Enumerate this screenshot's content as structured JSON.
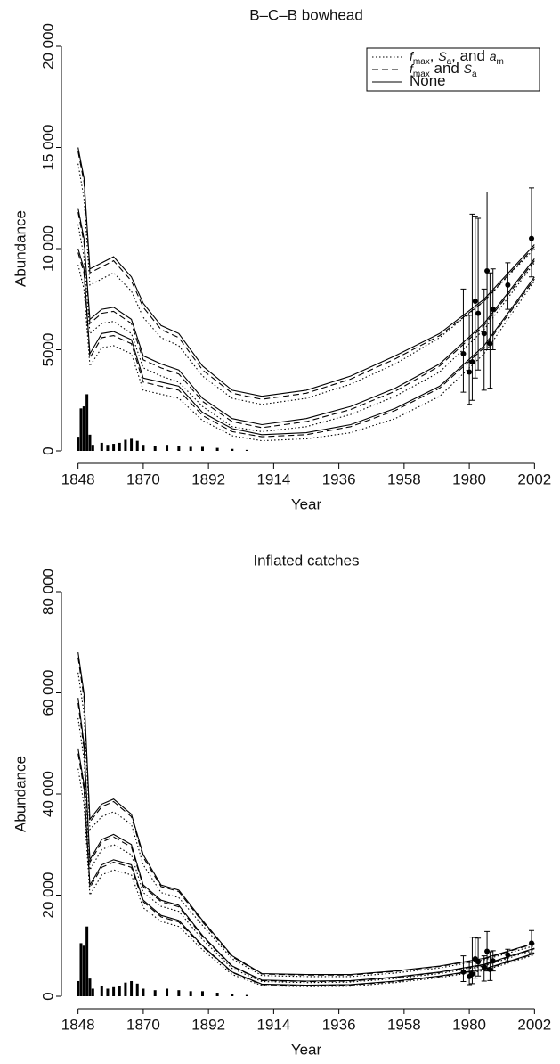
{
  "chart_data": [
    {
      "type": "line",
      "title": "B–C–B bowhead",
      "xlabel": "Year",
      "ylabel": "Abundance",
      "xlim": [
        1846,
        2004
      ],
      "ylim": [
        0,
        20000
      ],
      "xticks": [
        1848,
        1870,
        1892,
        1914,
        1936,
        1958,
        1980,
        2002
      ],
      "yticks": [
        0,
        5000,
        {
          "value": 10000,
          "label": "10 000"
        },
        {
          "value": 15000,
          "label": "15 000"
        },
        {
          "value": 20000,
          "label": "20 000"
        }
      ],
      "x": [
        1848,
        1850,
        1852,
        1856,
        1860,
        1866,
        1870,
        1876,
        1882,
        1890,
        1900,
        1910,
        1925,
        1940,
        1955,
        1970,
        1985,
        2002
      ],
      "series": [
        {
          "style": "solid",
          "values": [
            15000,
            13500,
            9000,
            9300,
            9600,
            8600,
            7300,
            6200,
            5800,
            4200,
            3000,
            2700,
            3000,
            3700,
            4700,
            5800,
            7500,
            10200
          ]
        },
        {
          "style": "solid",
          "values": [
            12000,
            10500,
            6500,
            7000,
            7100,
            6500,
            4700,
            4300,
            4000,
            2600,
            1600,
            1300,
            1600,
            2200,
            3100,
            4300,
            6300,
            9500
          ]
        },
        {
          "style": "solid",
          "values": [
            10000,
            9000,
            4800,
            5800,
            5900,
            5500,
            3600,
            3400,
            3200,
            1900,
            1100,
            800,
            900,
            1300,
            2100,
            3200,
            5200,
            8600
          ]
        },
        {
          "style": "dashed",
          "values": [
            14800,
            13300,
            8800,
            9100,
            9400,
            8400,
            7100,
            6000,
            5600,
            4000,
            2850,
            2550,
            2850,
            3550,
            4550,
            5700,
            7400,
            10100
          ]
        },
        {
          "style": "dashed",
          "values": [
            11800,
            10300,
            6300,
            6800,
            6900,
            6300,
            4500,
            4100,
            3800,
            2450,
            1450,
            1150,
            1450,
            2050,
            2950,
            4200,
            6200,
            9400
          ]
        },
        {
          "style": "dashed",
          "values": [
            9800,
            8800,
            4600,
            5600,
            5700,
            5300,
            3400,
            3200,
            3000,
            1750,
            950,
            700,
            800,
            1200,
            2000,
            3100,
            5100,
            8500
          ]
        },
        {
          "style": "dotted",
          "values": [
            14200,
            12500,
            8200,
            8500,
            8800,
            7900,
            6600,
            5600,
            5200,
            3700,
            2600,
            2300,
            2600,
            3300,
            4300,
            5600,
            7400,
            10000
          ]
        },
        {
          "style": "dotted",
          "values": [
            11200,
            9600,
            5800,
            6300,
            6400,
            5800,
            4100,
            3700,
            3400,
            2200,
            1200,
            950,
            1200,
            1800,
            2700,
            3900,
            6000,
            9300
          ]
        },
        {
          "style": "dotted",
          "values": [
            9200,
            8000,
            4200,
            5100,
            5200,
            4800,
            3000,
            2800,
            2600,
            1500,
            750,
            500,
            600,
            900,
            1600,
            2700,
            4800,
            8400
          ]
        }
      ],
      "catch_years": [
        1848,
        1849,
        1850,
        1851,
        1852,
        1853,
        1856,
        1858,
        1860,
        1862,
        1864,
        1866,
        1868,
        1870,
        1874,
        1878,
        1882,
        1886,
        1890,
        1895,
        1900,
        1905
      ],
      "catches": [
        700,
        2100,
        2200,
        2800,
        800,
        300,
        400,
        300,
        350,
        400,
        550,
        600,
        500,
        300,
        250,
        300,
        250,
        200,
        200,
        150,
        100,
        50
      ],
      "survey_years": [
        1978,
        1980,
        1981,
        1982,
        1983,
        1985,
        1986,
        1987,
        1988,
        1993,
        2001
      ],
      "surveys": [
        4800,
        3900,
        4400,
        7400,
        6800,
        5800,
        8900,
        5300,
        7000,
        8200,
        10500
      ],
      "survey_lower": [
        2900,
        2300,
        2500,
        3600,
        4000,
        3000,
        5000,
        3100,
        5000,
        7000,
        8600
      ],
      "survey_upper": [
        8000,
        6700,
        11700,
        11600,
        11500,
        8000,
        12800,
        8800,
        9000,
        9300,
        13000
      ],
      "legend": {
        "corner": "upper right",
        "entries": [
          {
            "style": "dotted",
            "parts": [
              {
                "text": "f",
                "font": "italic"
              },
              {
                "text": "max",
                "font": "sub"
              },
              {
                "text": ", ",
                "font": "normal"
              },
              {
                "text": "S",
                "font": "italic"
              },
              {
                "text": "a",
                "font": "sub"
              },
              {
                "text": ", and ",
                "font": "normal"
              },
              {
                "text": "a",
                "font": "italic"
              },
              {
                "text": "m",
                "font": "sub"
              }
            ]
          },
          {
            "style": "dashed",
            "parts": [
              {
                "text": "f",
                "font": "italic"
              },
              {
                "text": "max",
                "font": "sub"
              },
              {
                "text": " and ",
                "font": "normal"
              },
              {
                "text": "S",
                "font": "italic"
              },
              {
                "text": "a",
                "font": "sub"
              }
            ]
          },
          {
            "style": "solid",
            "parts": [
              {
                "text": "None",
                "font": "normal"
              }
            ]
          }
        ]
      }
    },
    {
      "type": "line",
      "title": "Inflated catches",
      "xlabel": "Year",
      "ylabel": "Abundance",
      "xlim": [
        1846,
        2004
      ],
      "ylim": [
        0,
        80000
      ],
      "xticks": [
        1848,
        1870,
        1892,
        1914,
        1936,
        1958,
        1980,
        2002
      ],
      "yticks": [
        0,
        {
          "value": 20000,
          "label": "20 000"
        },
        {
          "value": 40000,
          "label": "40 000"
        },
        {
          "value": 60000,
          "label": "60 000"
        },
        {
          "value": 80000,
          "label": "80 000"
        }
      ],
      "x": [
        1848,
        1850,
        1852,
        1856,
        1860,
        1866,
        1870,
        1876,
        1882,
        1890,
        1900,
        1910,
        1925,
        1940,
        1955,
        1970,
        1985,
        2002
      ],
      "series": [
        {
          "style": "solid",
          "values": [
            68000,
            60000,
            35000,
            38000,
            39000,
            36000,
            28000,
            22000,
            21000,
            15000,
            8000,
            4500,
            4300,
            4300,
            5000,
            6000,
            7500,
            10500
          ]
        },
        {
          "style": "solid",
          "values": [
            59000,
            50000,
            27000,
            31000,
            32000,
            30000,
            22000,
            19000,
            18000,
            12000,
            6000,
            3200,
            3000,
            3100,
            3800,
            4800,
            6300,
            9500
          ]
        },
        {
          "style": "solid",
          "values": [
            49000,
            42000,
            22000,
            26000,
            27000,
            26000,
            19000,
            16000,
            15000,
            10000,
            4800,
            2400,
            2200,
            2300,
            3000,
            4000,
            5400,
            8500
          ]
        },
        {
          "style": "dashed",
          "values": [
            67000,
            59000,
            34500,
            37500,
            38500,
            35500,
            27500,
            21700,
            20700,
            14700,
            7800,
            4400,
            4200,
            4200,
            4900,
            5900,
            7400,
            10400
          ]
        },
        {
          "style": "dashed",
          "values": [
            58000,
            49000,
            26500,
            30500,
            31500,
            29500,
            21700,
            18700,
            17700,
            11800,
            5900,
            3100,
            2900,
            3000,
            3700,
            4700,
            6200,
            9400
          ]
        },
        {
          "style": "dashed",
          "values": [
            48000,
            41000,
            21500,
            25500,
            26500,
            25500,
            18700,
            15700,
            14700,
            9800,
            4700,
            2300,
            2100,
            2200,
            2900,
            3900,
            5300,
            8400
          ]
        },
        {
          "style": "dotted",
          "values": [
            64000,
            56000,
            33000,
            35500,
            36500,
            34000,
            26000,
            20500,
            19500,
            14000,
            7400,
            4100,
            3900,
            3900,
            4600,
            5600,
            7200,
            10000
          ]
        },
        {
          "style": "dotted",
          "values": [
            55000,
            47000,
            25000,
            29000,
            30000,
            28000,
            20500,
            17800,
            16800,
            11200,
            5500,
            2900,
            2700,
            2800,
            3500,
            4500,
            6000,
            9200
          ]
        },
        {
          "style": "dotted",
          "values": [
            45000,
            38000,
            20000,
            24000,
            25000,
            24000,
            17500,
            14800,
            13800,
            9200,
            4300,
            2100,
            1900,
            2000,
            2700,
            3700,
            5100,
            8200
          ]
        }
      ],
      "catch_years": [
        1848,
        1849,
        1850,
        1851,
        1852,
        1853,
        1856,
        1858,
        1860,
        1862,
        1864,
        1866,
        1868,
        1870,
        1874,
        1878,
        1882,
        1886,
        1890,
        1895,
        1900,
        1905
      ],
      "catches": [
        3000,
        10500,
        10000,
        13800,
        3500,
        1500,
        2000,
        1500,
        1800,
        2000,
        2700,
        3000,
        2500,
        1500,
        1200,
        1500,
        1200,
        1000,
        1000,
        700,
        500,
        250
      ],
      "survey_years": [
        1978,
        1980,
        1981,
        1982,
        1983,
        1985,
        1986,
        1987,
        1988,
        1993,
        2001
      ],
      "surveys": [
        4800,
        3900,
        4400,
        7400,
        6800,
        5800,
        8900,
        5300,
        7000,
        8200,
        10500
      ],
      "survey_lower": [
        2900,
        2300,
        2500,
        3600,
        4000,
        3000,
        5000,
        3100,
        5000,
        7000,
        8600
      ],
      "survey_upper": [
        8000,
        6700,
        11700,
        11600,
        11500,
        8000,
        12800,
        8800,
        9000,
        9300,
        13000
      ]
    }
  ]
}
